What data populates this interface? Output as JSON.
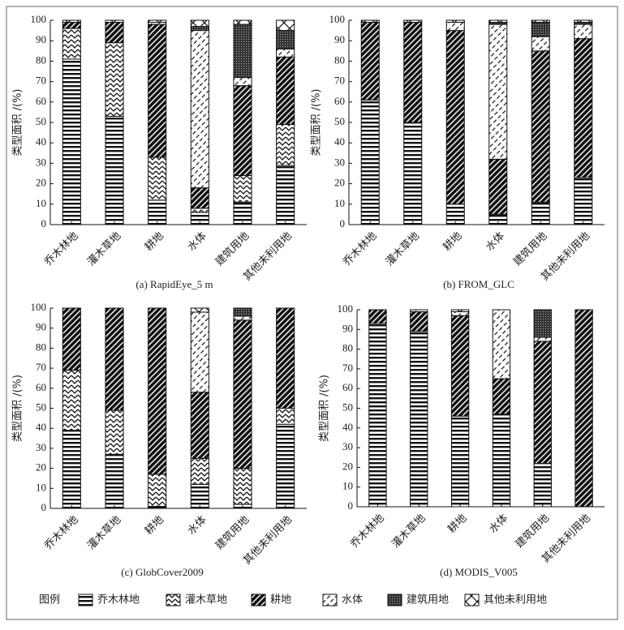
{
  "legend_title": "图例",
  "chart_data": [
    {
      "type": "stacked-bar",
      "title": "(a) RapidEye_5 m",
      "ylabel": "类型面积 /(%)",
      "categories": [
        "乔木林地",
        "灌木草地",
        "耕地",
        "水体",
        "建筑用地",
        "其他未利用地"
      ],
      "ylim": [
        0,
        100
      ],
      "yticks": [
        0,
        10,
        20,
        30,
        40,
        50,
        60,
        70,
        80,
        90,
        100
      ],
      "series": [
        {
          "name": "乔木林地",
          "pattern": "hlines",
          "values": [
            81,
            53,
            12,
            6,
            11,
            29
          ]
        },
        {
          "name": "灌木草地",
          "pattern": "zigzag",
          "values": [
            15,
            36,
            21,
            2,
            13,
            20
          ]
        },
        {
          "name": "耕地",
          "pattern": "diagonal",
          "values": [
            3,
            10,
            65,
            10,
            44,
            33
          ]
        },
        {
          "name": "水体",
          "pattern": "dashed-diagonal",
          "values": [
            0,
            0,
            1,
            77,
            4,
            4
          ]
        },
        {
          "name": "建筑用地",
          "pattern": "crosshatch",
          "values": [
            0,
            0,
            0,
            2,
            26,
            9
          ]
        },
        {
          "name": "其他未利用地",
          "pattern": "cross",
          "values": [
            1,
            1,
            1,
            3,
            2,
            5
          ]
        }
      ]
    },
    {
      "type": "stacked-bar",
      "title": "(b) FROM_GLC",
      "ylabel": "类型面积 /(%)",
      "categories": [
        "乔木林地",
        "灌木草地",
        "耕地",
        "水体",
        "建筑用地",
        "其他未利用地"
      ],
      "ylim": [
        0,
        100
      ],
      "yticks": [
        0,
        10,
        20,
        30,
        40,
        50,
        60,
        70,
        80,
        90,
        100
      ],
      "series": [
        {
          "name": "乔木林地",
          "pattern": "hlines",
          "values": [
            61,
            50,
            10,
            5,
            11,
            23
          ]
        },
        {
          "name": "灌木草地",
          "pattern": "zigzag",
          "values": [
            0,
            0,
            0,
            0,
            0,
            0
          ]
        },
        {
          "name": "耕地",
          "pattern": "diagonal",
          "values": [
            38,
            49,
            85,
            27,
            74,
            68
          ]
        },
        {
          "name": "水体",
          "pattern": "dashed-diagonal",
          "values": [
            0,
            0,
            4,
            66,
            7,
            7
          ]
        },
        {
          "name": "建筑用地",
          "pattern": "crosshatch",
          "values": [
            0,
            0,
            0,
            1,
            7,
            1
          ]
        },
        {
          "name": "其他未利用地",
          "pattern": "cross",
          "values": [
            1,
            1,
            1,
            1,
            1,
            1
          ]
        }
      ]
    },
    {
      "type": "stacked-bar",
      "title": "(c) GlobCover2009",
      "ylabel": "类型面积 /(%)",
      "categories": [
        "乔木林地",
        "灌木草地",
        "耕地",
        "水体",
        "建筑用地",
        "其他未利用地"
      ],
      "ylim": [
        0,
        100
      ],
      "yticks": [
        0,
        10,
        20,
        30,
        40,
        50,
        60,
        70,
        80,
        90,
        100
      ],
      "series": [
        {
          "name": "乔木林地",
          "pattern": "hlines",
          "values": [
            39,
            27,
            1,
            12,
            2,
            42
          ]
        },
        {
          "name": "灌木草地",
          "pattern": "zigzag",
          "values": [
            30,
            22,
            16,
            13,
            18,
            8
          ]
        },
        {
          "name": "耕地",
          "pattern": "diagonal",
          "values": [
            31,
            51,
            83,
            33,
            74,
            50
          ]
        },
        {
          "name": "水体",
          "pattern": "dashed-diagonal",
          "values": [
            0,
            0,
            0,
            40,
            2,
            0
          ]
        },
        {
          "name": "建筑用地",
          "pattern": "crosshatch",
          "values": [
            0,
            0,
            0,
            0,
            4,
            0
          ]
        },
        {
          "name": "其他未利用地",
          "pattern": "cross",
          "values": [
            0,
            0,
            0,
            2,
            0,
            0
          ]
        }
      ]
    },
    {
      "type": "stacked-bar",
      "title": "(d) MODIS_V005",
      "ylabel": "类型面积 /(%)",
      "categories": [
        "乔木林地",
        "灌木草地",
        "耕地",
        "水体",
        "建筑用地",
        "其他未利用地"
      ],
      "ylim": [
        0,
        100
      ],
      "yticks": [
        0,
        10,
        20,
        30,
        40,
        50,
        60,
        70,
        80,
        90,
        100
      ],
      "series": [
        {
          "name": "乔木林地",
          "pattern": "hlines",
          "values": [
            93,
            89,
            46,
            47,
            22,
            0
          ]
        },
        {
          "name": "灌木草地",
          "pattern": "zigzag",
          "values": [
            0,
            0,
            0,
            0,
            0,
            0
          ]
        },
        {
          "name": "耕地",
          "pattern": "diagonal",
          "values": [
            7,
            10,
            51,
            18,
            62,
            100
          ]
        },
        {
          "name": "水体",
          "pattern": "dashed-diagonal",
          "values": [
            0,
            1,
            2,
            35,
            2,
            0
          ]
        },
        {
          "name": "建筑用地",
          "pattern": "crosshatch",
          "values": [
            0,
            0,
            0,
            0,
            14,
            0
          ]
        },
        {
          "name": "其他未利用地",
          "pattern": "cross",
          "values": [
            0,
            0,
            1,
            0,
            0,
            0
          ]
        }
      ]
    }
  ]
}
